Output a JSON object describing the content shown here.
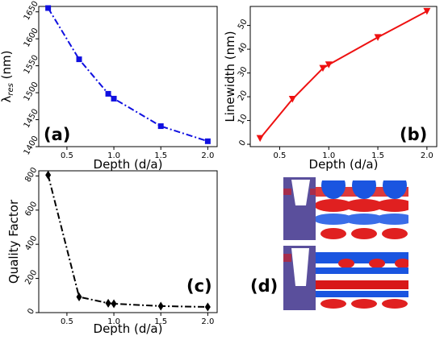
{
  "chart_data": [
    {
      "type": "line",
      "panel_label": "(a)",
      "xlabel": "Depth (d/a)",
      "ylabel_main": "λ",
      "ylabel_sub": "res",
      "ylabel_unit": " (nm)",
      "xlim": [
        0.2,
        2.1
      ],
      "ylim": [
        1400,
        1660
      ],
      "xticks": [
        "0.5",
        "1.0",
        "1.5",
        "2.0"
      ],
      "yticks": [
        "1400",
        "1450",
        "1500",
        "1550",
        "1600",
        "1650"
      ],
      "color": "#1010e0",
      "linestyle": "dashdot",
      "marker": "square",
      "x": [
        0.3,
        0.63,
        0.94,
        1.0,
        1.5,
        2.0
      ],
      "values": [
        1657,
        1562,
        1498,
        1489,
        1438,
        1410
      ]
    },
    {
      "type": "line",
      "panel_label": "(b)",
      "xlabel": "Depth (d/a)",
      "ylabel": "Linewidth (nm)",
      "xlim": [
        0.2,
        2.1
      ],
      "ylim": [
        -1,
        58
      ],
      "xticks": [
        "0.5",
        "1.0",
        "1.5",
        "2.0"
      ],
      "yticks": [
        "0",
        "10",
        "20",
        "30",
        "40",
        "50"
      ],
      "color": "#ee1111",
      "linestyle": "solid",
      "marker": "triangle-down",
      "x": [
        0.3,
        0.63,
        0.94,
        1.0,
        1.5,
        2.0
      ],
      "values": [
        2.5,
        19,
        32,
        33.5,
        45,
        56
      ]
    },
    {
      "type": "line",
      "panel_label": "(c)",
      "xlabel": "Depth (d/a)",
      "ylabel": "Quality Factor",
      "xlim": [
        0.2,
        2.1
      ],
      "ylim": [
        0,
        830
      ],
      "xticks": [
        "0.5",
        "1.0",
        "1.5",
        "2.0"
      ],
      "yticks": [
        "0",
        "200",
        "400",
        "600",
        "800"
      ],
      "color": "#000000",
      "linestyle": "dashdot",
      "marker": "diamond",
      "x": [
        0.3,
        0.63,
        0.94,
        1.0,
        1.5,
        2.0
      ],
      "values": [
        805,
        92,
        55,
        52,
        38,
        33
      ]
    }
  ],
  "figure_d": {
    "panel_label": "(d)",
    "colors": {
      "slab": "#5a4f9c",
      "positive": "#e01010",
      "negative": "#1050e0"
    }
  }
}
